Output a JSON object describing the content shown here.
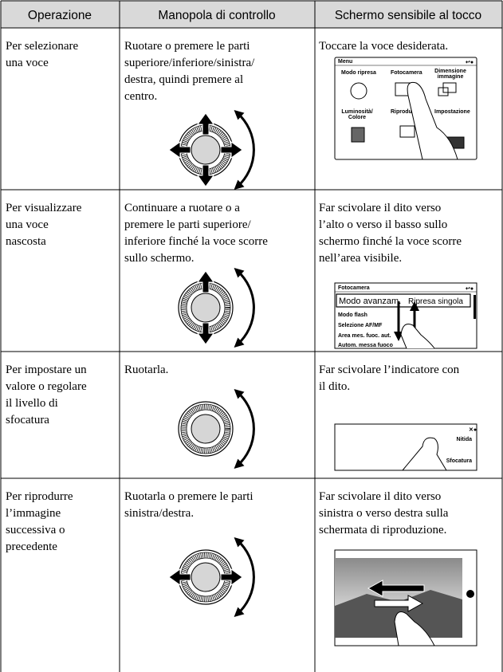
{
  "table": {
    "header": [
      "Operazione",
      "Manopola di controllo",
      "Schermo sensibile al tocco"
    ],
    "rows": [
      {
        "operation": [
          "Per selezionare",
          "una voce"
        ],
        "dial": [
          "Ruotare o premere le parti",
          "superiore/inferiore/sinistra/",
          "destra, quindi premere al",
          "centro."
        ],
        "touch": [
          "Toccare la voce desiderata."
        ]
      },
      {
        "operation": [
          "Per visualizzare",
          "una voce",
          "nascosta"
        ],
        "dial": [
          "Continuare a ruotare o a",
          "premere le parti superiore/",
          "inferiore finché la voce scorre",
          "sullo schermo."
        ],
        "touch": [
          "Far scivolare il dito verso",
          "l’alto o verso il basso sullo",
          "schermo finché la voce scorre",
          "nell’area visibile."
        ]
      },
      {
        "operation": [
          "Per impostare un",
          "valore o regolare",
          "il livello di",
          "sfocatura"
        ],
        "dial": [
          "Ruotarla."
        ],
        "touch": [
          "Far scivolare l’indicatore con",
          "il dito."
        ]
      },
      {
        "operation": [
          "Per riprodurre",
          "l’immagine",
          "successiva o",
          "precedente"
        ],
        "dial": [
          "Ruotarla o premere le parti",
          "sinistra/destra."
        ],
        "touch": [
          "Far scivolare il dito verso",
          "sinistra o verso destra sulla",
          "schermata di riproduzione."
        ]
      }
    ]
  },
  "screens": {
    "menu": {
      "title": "Menu",
      "items": [
        "Modo ripresa",
        "Fotocamera",
        "Dimensione",
        "immagine",
        "Luminosità/",
        "Colore",
        "Riproduzione",
        "Impostazione"
      ]
    },
    "camera": {
      "title": "Fotocamera",
      "items": [
        "Modo avanzam.",
        "Ripresa singola",
        "Modo flash",
        "Selezione AF/MF",
        "Area mes. fuoc. aut.",
        "Autom. messa fuoco"
      ]
    },
    "blur": {
      "labels": [
        "Nitida",
        "Sfocatura"
      ]
    }
  }
}
